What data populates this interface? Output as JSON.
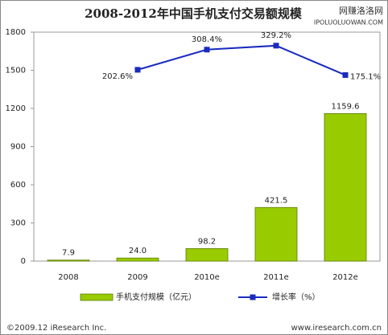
{
  "chart_data": {
    "type": "bar_line",
    "title": "2008-2012年中国手机支付交易额规模",
    "watermark": [
      "网赚洛洛网",
      "IPOLUOLUOWAN.COM"
    ],
    "categories": [
      "2008",
      "2009",
      "2010e",
      "2011e",
      "2012e"
    ],
    "series": [
      {
        "name": "手机支付规模（亿元）",
        "color": "#99cc00",
        "values": [
          7.9,
          24.0,
          98.2,
          421.5,
          1159.6
        ],
        "value_labels": [
          "7.9",
          "24.0",
          "98.2",
          "421.5",
          "1159.6"
        ]
      },
      {
        "name": "增长率（%）",
        "color": "#1a2bbf",
        "axis": "y2",
        "values": [
          null,
          202.6,
          308.4,
          329.2,
          175.1
        ],
        "value_labels": [
          null,
          "202.6%",
          "308.4%",
          "329.2%",
          "175.1%"
        ]
      }
    ],
    "ylim": [
      0,
      1800
    ],
    "yticks": [
      0,
      300,
      600,
      900,
      1200,
      1500,
      1800
    ],
    "y2lim": [
      -800,
      400
    ],
    "grid": false,
    "legend": "bottom",
    "footer_left": "©2009.12 iResearch Inc.",
    "footer_right": "www.iresearch.com.cn"
  }
}
